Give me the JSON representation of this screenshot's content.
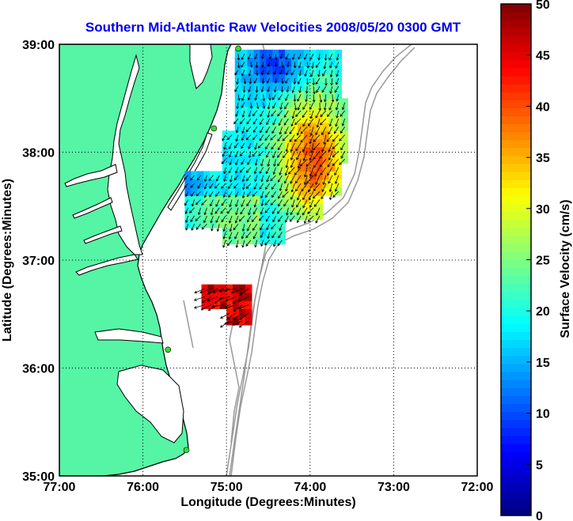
{
  "title": "Southern Mid-Atlantic Raw Velocities 2008/05/20 0300 GMT",
  "map": {
    "xlabel": "Longitude (Degrees:Minutes)",
    "ylabel": "Latitude (Degrees:Minutes)",
    "x_ticks": [
      {
        "value": -77,
        "label": "77:00"
      },
      {
        "value": -76,
        "label": "76:00"
      },
      {
        "value": -75,
        "label": "75:00"
      },
      {
        "value": -74,
        "label": "74:00"
      },
      {
        "value": -73,
        "label": "73:00"
      },
      {
        "value": -72,
        "label": "72:00"
      }
    ],
    "y_ticks": [
      {
        "value": 39,
        "label": "39:00"
      },
      {
        "value": 38,
        "label": "38:00"
      },
      {
        "value": 37,
        "label": "37:00"
      },
      {
        "value": 36,
        "label": "36:00"
      },
      {
        "value": 35,
        "label": "35:00"
      }
    ],
    "xlim": [
      -77,
      -72
    ],
    "ylim": [
      35,
      39
    ],
    "grid": "dotted",
    "colors": {
      "land": "#55f5a5",
      "ocean": "#ffffff",
      "coastline": "#000000",
      "bathymetry": "#999999",
      "station": "#33dd33"
    },
    "stations": [
      {
        "lon": -74.86,
        "lat": 38.96
      },
      {
        "lon": -75.15,
        "lat": 38.22
      },
      {
        "lon": -75.7,
        "lat": 36.17
      },
      {
        "lon": -75.48,
        "lat": 35.24
      }
    ],
    "velocity_field_regions": [
      {
        "name": "delmarva-shelf",
        "lon_range": [
          -75.5,
          -73.6
        ],
        "lat_range": [
          37.15,
          38.95
        ]
      },
      {
        "name": "virginia-offshore",
        "lon_range": [
          -75.3,
          -74.7
        ],
        "lat_range": [
          36.4,
          36.75
        ]
      }
    ]
  },
  "colorbar": {
    "label": "Surface Velocity (cm/s)",
    "min": 0,
    "max": 50,
    "ticks": [
      {
        "value": 50,
        "label": "50"
      },
      {
        "value": 45,
        "label": "45"
      },
      {
        "value": 40,
        "label": "40"
      },
      {
        "value": 35,
        "label": "35"
      },
      {
        "value": 30,
        "label": "30"
      },
      {
        "value": 25,
        "label": "25"
      },
      {
        "value": 20,
        "label": "20"
      },
      {
        "value": 15,
        "label": "15"
      },
      {
        "value": 10,
        "label": "10"
      },
      {
        "value": 5,
        "label": "5"
      },
      {
        "value": 0,
        "label": "0"
      }
    ],
    "colormap": "jet"
  }
}
